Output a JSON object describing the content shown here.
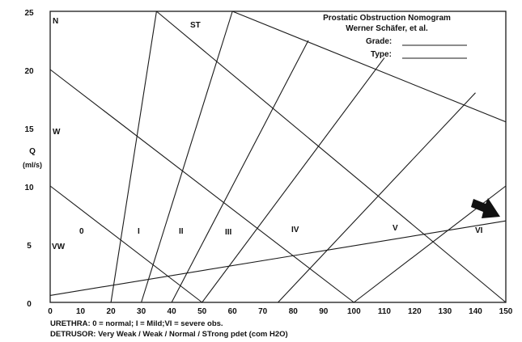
{
  "title": {
    "line1": "Prostatic Obstruction Nomogram",
    "line2": "Werner Schäfer, et al.",
    "grade_label": "Grade:",
    "type_label": "Type:"
  },
  "y_axis": {
    "label": "Q",
    "unit": "(ml/s)",
    "ticks": [
      "25",
      "20",
      "15",
      "10",
      "5",
      "0"
    ],
    "range": [
      0,
      25
    ]
  },
  "x_axis": {
    "ticks": [
      "0",
      "10",
      "20",
      "30",
      "40",
      "50",
      "60",
      "70",
      "80",
      "90",
      "100",
      "110",
      "120",
      "130",
      "140",
      "150"
    ],
    "range": [
      0,
      150
    ]
  },
  "detrusor_labels": [
    "N",
    "ST",
    "W",
    "VW"
  ],
  "urethra_zones": [
    "0",
    "I",
    "II",
    "III",
    "IV",
    "V",
    "VI"
  ],
  "legend": {
    "urethra": "URETHRA: 0 = normal; I = Mild;VI = severe obs.",
    "detrusor": "DETRUSOR: Very Weak / Weak / Normal / STrong pdet (com H2O)"
  },
  "lines": {
    "detrusor": [
      [
        [
          0,
          10
        ],
        [
          50,
          0
        ]
      ],
      [
        [
          0,
          20
        ],
        [
          100,
          0
        ]
      ],
      [
        [
          35,
          25
        ],
        [
          150,
          0
        ]
      ],
      [
        [
          60,
          25
        ],
        [
          150,
          15.5
        ]
      ]
    ],
    "urethra": [
      [
        [
          20,
          0
        ],
        [
          35,
          25
        ]
      ],
      [
        [
          30,
          0
        ],
        [
          60,
          25
        ]
      ],
      [
        [
          40,
          0
        ],
        [
          85,
          22.5
        ]
      ],
      [
        [
          50,
          0
        ],
        [
          110,
          21
        ]
      ],
      [
        [
          75,
          0
        ],
        [
          140,
          18
        ]
      ],
      [
        [
          100,
          0
        ],
        [
          150,
          10
        ]
      ]
    ],
    "grade_line": [
      [
        0,
        0.6
      ],
      [
        150,
        7
      ]
    ]
  }
}
